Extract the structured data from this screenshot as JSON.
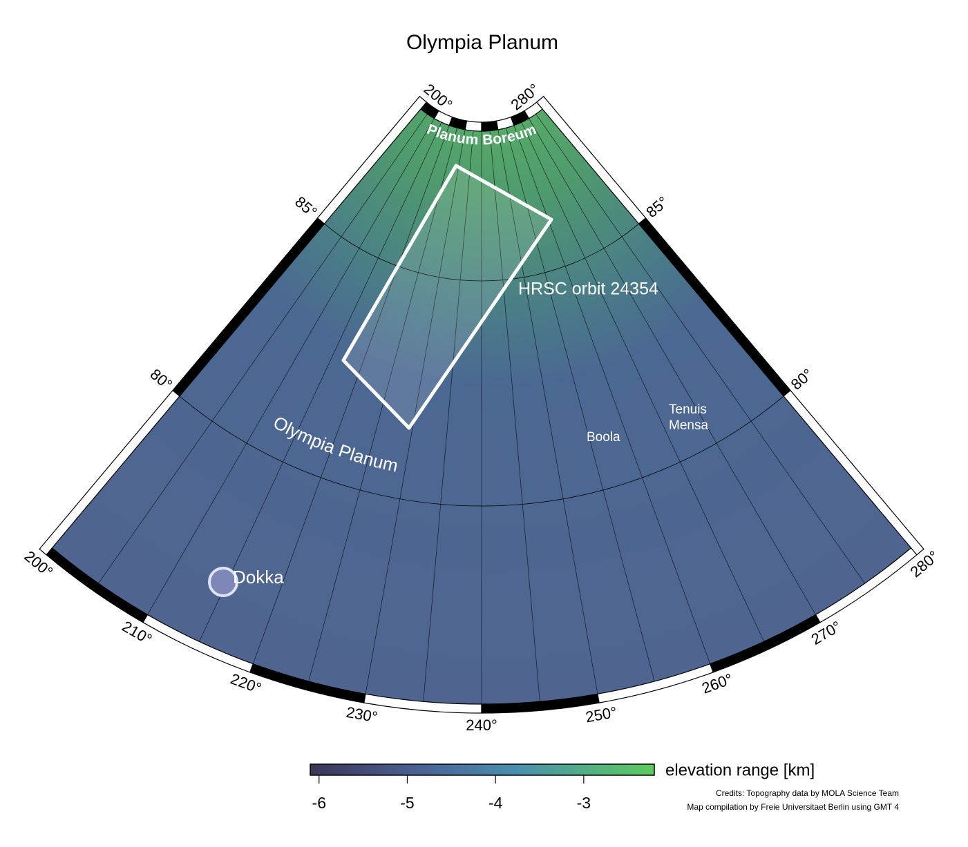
{
  "title": "Olympia Planum",
  "map": {
    "longitude_labels": [
      {
        "value": 200,
        "label": "200°"
      },
      {
        "value": 210,
        "label": "210°"
      },
      {
        "value": 220,
        "label": "220°"
      },
      {
        "value": 230,
        "label": "230°"
      },
      {
        "value": 240,
        "label": "240°"
      },
      {
        "value": 250,
        "label": "250°"
      },
      {
        "value": 260,
        "label": "260°"
      },
      {
        "value": 270,
        "label": "270°"
      },
      {
        "value": 280,
        "label": "280°"
      }
    ],
    "top_longitude_labels": [
      {
        "value": 200,
        "label": "200°"
      },
      {
        "value": 280,
        "label": "280°"
      }
    ],
    "latitude_labels": [
      {
        "value": 85,
        "label": "85°"
      },
      {
        "value": 80,
        "label": "80°"
      }
    ],
    "places": {
      "planum_boreum": "Planum Boreum",
      "hrsc": "HRSC orbit 24354",
      "olympia_planum": "Olympia Planum",
      "boola": "Boola",
      "tenuis": "Tenuis",
      "mensa": "Mensa",
      "dokka": "Dokka"
    }
  },
  "colorbar": {
    "label": "elevation range [km]",
    "range": [
      -6.1,
      -2.2
    ],
    "ticks": [
      -6,
      -5,
      -4,
      -3
    ]
  },
  "credits": [
    "Credits: Topography data by MOLA Science Team",
    "Map compilation by Freie Universitaet Berlin using GMT 4"
  ]
}
